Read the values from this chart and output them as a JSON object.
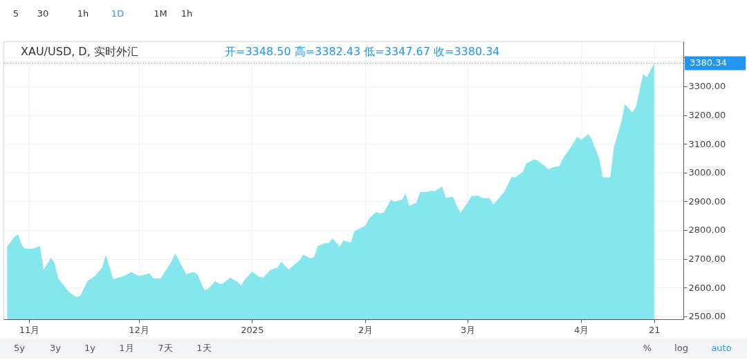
{
  "chart_data": {
    "type": "area",
    "title": "XAU/USD, D, 实时外汇",
    "subtitle": "开=3348.50  高=3382.43  低=3347.67  收=3380.34",
    "annotations": [
      "5",
      "30",
      "1h",
      "1D",
      "1M",
      "1h",
      "5y",
      "3y",
      "1y",
      "1月",
      "7天",
      "1天",
      "%",
      "log",
      "auto"
    ],
    "x": [
      "2024-10-26",
      "2024-10-28",
      "2024-10-29",
      "2024-10-30",
      "2024-10-31",
      "2024-11-02",
      "2024-11-04",
      "2024-11-05",
      "2024-11-07",
      "2024-11-08",
      "2024-11-09",
      "2024-11-12",
      "2024-11-14",
      "2024-11-15",
      "2024-11-17",
      "2024-11-19",
      "2024-11-21",
      "2024-11-22",
      "2024-11-24",
      "2024-11-27",
      "2024-11-29",
      "2024-12-01",
      "2024-12-04",
      "2024-12-05",
      "2024-12-07",
      "2024-12-10",
      "2024-12-11",
      "2024-12-14",
      "2024-12-16",
      "2024-12-17",
      "2024-12-19",
      "2024-12-20",
      "2024-12-22",
      "2024-12-23",
      "2024-12-24",
      "2024-12-26",
      "2024-12-28",
      "2024-12-29",
      "2024-12-30",
      "2025-01-01",
      "2025-01-03",
      "2025-01-04",
      "2025-01-06",
      "2025-01-08",
      "2025-01-09",
      "2025-01-11",
      "2025-01-14",
      "2025-01-15",
      "2025-01-17",
      "2025-01-18",
      "2025-01-19",
      "2025-01-21",
      "2025-01-22",
      "2025-01-23",
      "2025-01-25",
      "2025-01-26",
      "2025-01-28",
      "2025-01-29",
      "2025-01-30",
      "2025-02-01",
      "2025-02-02",
      "2025-02-04",
      "2025-02-05",
      "2025-02-06",
      "2025-02-08",
      "2025-02-09",
      "2025-02-11",
      "2025-02-12",
      "2025-02-13",
      "2025-02-15",
      "2025-02-16",
      "2025-02-18",
      "2025-02-19",
      "2025-02-20",
      "2025-02-22",
      "2025-02-23",
      "2025-02-25",
      "2025-02-26",
      "2025-02-27",
      "2025-03-01",
      "2025-03-02",
      "2025-03-04",
      "2025-03-05",
      "2025-03-07",
      "2025-03-08",
      "2025-03-10",
      "2025-03-11",
      "2025-03-13",
      "2025-03-14",
      "2025-03-16",
      "2025-03-17",
      "2025-03-19",
      "2025-03-20",
      "2025-03-22",
      "2025-03-23",
      "2025-03-25",
      "2025-03-26",
      "2025-03-27",
      "2025-03-29",
      "2025-03-31",
      "2025-04-01",
      "2025-04-03",
      "2025-04-04",
      "2025-04-06",
      "2025-04-07",
      "2025-04-09",
      "2025-04-10",
      "2025-04-12",
      "2025-04-13",
      "2025-04-15",
      "2025-04-16",
      "2025-04-18",
      "2025-04-19",
      "2025-04-21"
    ],
    "series": [
      {
        "color": "#86e6ee",
        "values": [
          2743,
          2776,
          2786,
          2747,
          2735,
          2735,
          2745,
          2661,
          2704,
          2685,
          2632,
          2584,
          2567,
          2572,
          2623,
          2640,
          2670,
          2714,
          2630,
          2640,
          2654,
          2640,
          2649,
          2632,
          2632,
          2692,
          2719,
          2647,
          2654,
          2647,
          2591,
          2596,
          2623,
          2613,
          2613,
          2635,
          2620,
          2608,
          2627,
          2656,
          2637,
          2635,
          2661,
          2670,
          2690,
          2663,
          2695,
          2714,
          2702,
          2707,
          2745,
          2755,
          2755,
          2772,
          2743,
          2764,
          2757,
          2796,
          2803,
          2815,
          2841,
          2863,
          2858,
          2860,
          2906,
          2899,
          2906,
          2928,
          2884,
          2896,
          2933,
          2933,
          2937,
          2935,
          2952,
          2913,
          2916,
          2884,
          2860,
          2896,
          2918,
          2920,
          2911,
          2911,
          2889,
          2918,
          2933,
          2985,
          2983,
          3002,
          3031,
          3045,
          3043,
          3024,
          3012,
          3021,
          3021,
          3048,
          3084,
          3125,
          3113,
          3134,
          3113,
          3048,
          2983,
          2983,
          3089,
          3175,
          3238,
          3209,
          3228,
          3343,
          3331,
          3380.34
        ]
      }
    ],
    "xlim": [
      "2024-10-25",
      "2025-04-29"
    ],
    "xticks": [
      {
        "value": "2024-11-01",
        "label": "11月"
      },
      {
        "value": "2024-12-01",
        "label": "12月"
      },
      {
        "value": "2025-01-01",
        "label": "2025"
      },
      {
        "value": "2025-02-01",
        "label": "2月"
      },
      {
        "value": "2025-03-01",
        "label": "3月"
      },
      {
        "value": "2025-04-01",
        "label": "4月"
      },
      {
        "value": "2025-04-21",
        "label": "21"
      }
    ],
    "ylim": [
      2490,
      3456
    ],
    "yticks": [
      {
        "value": 2500,
        "label": "2500.00"
      },
      {
        "value": 2600,
        "label": "2600.00"
      },
      {
        "value": 2700,
        "label": "2700.00"
      },
      {
        "value": 2800,
        "label": "2800.00"
      },
      {
        "value": 2900,
        "label": "2900.00"
      },
      {
        "value": 3000,
        "label": "3000.00"
      },
      {
        "value": 3100,
        "label": "3100.00"
      },
      {
        "value": 3200,
        "label": "3200.00"
      },
      {
        "value": 3300,
        "label": "3300.00"
      },
      {
        "value": 3400,
        "label": null
      }
    ],
    "ref_lines": [
      {
        "axis": "y",
        "value": 3380.34,
        "label": "3380.34",
        "color": "#2196f3",
        "line_style": "dotted"
      }
    ],
    "grid": true,
    "marker": "none"
  }
}
